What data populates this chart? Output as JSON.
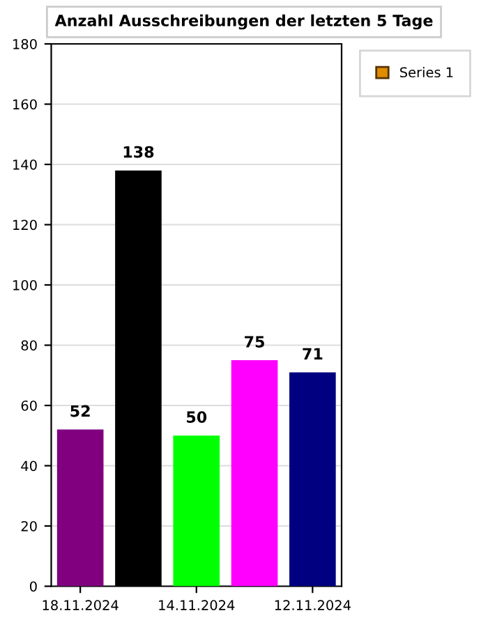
{
  "chart_data": {
    "type": "bar",
    "title": "Anzahl Ausschreibungen der letzten 5 Tage",
    "categories": [
      "18.11.2024",
      null,
      "14.11.2024",
      null,
      "12.11.2024"
    ],
    "series": [
      {
        "name": "Series 1",
        "color": "#e08c00",
        "colors": [
          "#800080",
          "#000000",
          "#00ff00",
          "#ff00ff",
          "#000080"
        ],
        "values": [
          52,
          138,
          50,
          75,
          71
        ]
      }
    ],
    "ylim": [
      0,
      180
    ],
    "yticks": [
      0,
      20,
      40,
      60,
      80,
      100,
      120,
      140,
      160,
      180
    ],
    "grid": "y",
    "legend": "top right",
    "data_labels": true
  }
}
